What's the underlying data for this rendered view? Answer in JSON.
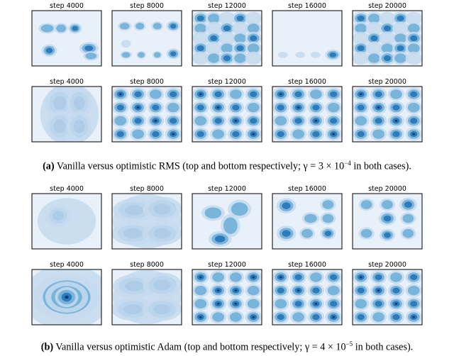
{
  "figures": [
    {
      "label": "(a)",
      "caption_text": " Vanilla versus optimistic RMS (top and bottom respectively; γ = 3 × 10",
      "caption_exp": "−4",
      "caption_end": " in both cases).",
      "rows": [
        {
          "name": "vanilla-rms",
          "panels": [
            {
              "title": "step 4000",
              "pattern": "sparse-a"
            },
            {
              "title": "step 8000",
              "pattern": "sparse-b"
            },
            {
              "title": "step 12000",
              "pattern": "grid-faint"
            },
            {
              "title": "step 16000",
              "pattern": "bottom-only"
            },
            {
              "title": "step 20000",
              "pattern": "grid-faint"
            }
          ]
        },
        {
          "name": "optimistic-rms",
          "panels": [
            {
              "title": "step 4000",
              "pattern": "x-shape"
            },
            {
              "title": "step 8000",
              "pattern": "grid-full"
            },
            {
              "title": "step 12000",
              "pattern": "grid-full"
            },
            {
              "title": "step 16000",
              "pattern": "grid-full"
            },
            {
              "title": "step 20000",
              "pattern": "grid-full"
            }
          ]
        }
      ]
    },
    {
      "label": "(b)",
      "caption_text": " Vanilla versus optimistic Adam (top and bottom respectively; γ = 4 × 10",
      "caption_exp": "−5",
      "caption_end": " in both cases).",
      "rows": [
        {
          "name": "vanilla-adam",
          "panels": [
            {
              "title": "step 4000",
              "pattern": "single-blob"
            },
            {
              "title": "step 8000",
              "pattern": "x-large"
            },
            {
              "title": "step 12000",
              "pattern": "y-shape"
            },
            {
              "title": "step 16000",
              "pattern": "partial-grid"
            },
            {
              "title": "step 20000",
              "pattern": "partial-grid-b"
            }
          ]
        },
        {
          "name": "optimistic-adam",
          "panels": [
            {
              "title": "step 4000",
              "pattern": "big-blob"
            },
            {
              "title": "step 8000",
              "pattern": "x-large"
            },
            {
              "title": "step 12000",
              "pattern": "x-grid"
            },
            {
              "title": "step 16000",
              "pattern": "grid-full"
            },
            {
              "title": "step 20000",
              "pattern": "grid-full"
            }
          ]
        }
      ]
    }
  ],
  "colors": {
    "background": "#e8f0f9",
    "light": "#c6dbef",
    "mid": "#6baed6",
    "strong": "#2171b5",
    "dark": "#08306b"
  }
}
